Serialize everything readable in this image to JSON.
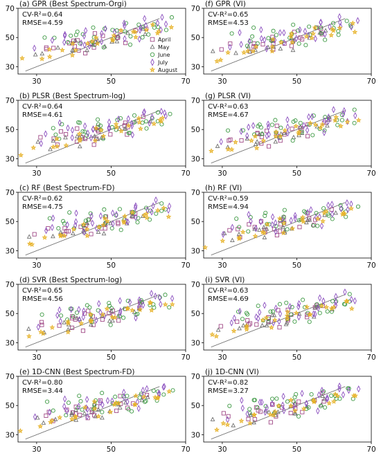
{
  "chart_data": [
    {
      "type": "scatter",
      "panel_title": "(a) GPR (Best Spectrum-Orgi)",
      "stats": [
        "CV-R²=0.64",
        "RMSE=4.59"
      ],
      "xlim": [
        25,
        70
      ],
      "ylim": [
        25,
        70
      ],
      "xticks": [
        30,
        50,
        70
      ],
      "yticks": [
        30,
        50,
        70
      ],
      "show_legend": true
    },
    {
      "type": "scatter",
      "panel_title": "(f) GPR (VI)",
      "stats": [
        "CV-R²=0.65",
        "RMSE=4.53"
      ],
      "xlim": [
        25,
        70
      ],
      "ylim": [
        25,
        70
      ],
      "xticks": [
        30,
        50,
        70
      ],
      "yticks": [
        30,
        50,
        70
      ],
      "show_legend": false
    },
    {
      "type": "scatter",
      "panel_title": "(b) PLSR (Best Spectrum-log)",
      "stats": [
        "CV-R²=0.64",
        "RMSE=4.61"
      ],
      "xlim": [
        25,
        70
      ],
      "ylim": [
        25,
        70
      ],
      "xticks": [
        30,
        50,
        70
      ],
      "yticks": [
        30,
        50,
        70
      ],
      "show_legend": false
    },
    {
      "type": "scatter",
      "panel_title": "(g) PLSR (VI)",
      "stats": [
        "CV-R²=0.63",
        "RMSE=4.67"
      ],
      "xlim": [
        25,
        70
      ],
      "ylim": [
        25,
        70
      ],
      "xticks": [
        30,
        50,
        70
      ],
      "yticks": [
        30,
        50,
        70
      ],
      "show_legend": false
    },
    {
      "type": "scatter",
      "panel_title": "(c) RF (Best Spectrum-FD)",
      "stats": [
        "CV-R²=0.62",
        "RMSE=4.75"
      ],
      "xlim": [
        25,
        70
      ],
      "ylim": [
        25,
        70
      ],
      "xticks": [
        30,
        50,
        70
      ],
      "yticks": [
        30,
        50,
        70
      ],
      "show_legend": false
    },
    {
      "type": "scatter",
      "panel_title": "(h) RF (VI)",
      "stats": [
        "CV-R²=0.59",
        "RMSE=4.94"
      ],
      "xlim": [
        25,
        70
      ],
      "ylim": [
        25,
        70
      ],
      "xticks": [
        30,
        50,
        70
      ],
      "yticks": [
        30,
        50,
        70
      ],
      "show_legend": false
    },
    {
      "type": "scatter",
      "panel_title": "(d) SVR (Best Spectrum-log)",
      "stats": [
        "CV-R²=0.65",
        "RMSE=4.56"
      ],
      "xlim": [
        25,
        70
      ],
      "ylim": [
        25,
        70
      ],
      "xticks": [
        30,
        50,
        70
      ],
      "yticks": [
        30,
        50,
        70
      ],
      "show_legend": false
    },
    {
      "type": "scatter",
      "panel_title": "(i) SVR (VI)",
      "stats": [
        "CV-R²=0.63",
        "RMSE=4.69"
      ],
      "xlim": [
        25,
        70
      ],
      "ylim": [
        25,
        70
      ],
      "xticks": [
        30,
        50,
        70
      ],
      "yticks": [
        30,
        50,
        70
      ],
      "show_legend": false
    },
    {
      "type": "scatter",
      "panel_title": "(e) 1D-CNN (Best Spectrum-FD)",
      "stats": [
        "CV-R²=0.80",
        "RMSE=3.44"
      ],
      "xlim": [
        25,
        70
      ],
      "ylim": [
        25,
        70
      ],
      "xticks": [
        30,
        50,
        70
      ],
      "yticks": [
        30,
        50,
        70
      ],
      "show_legend": false
    },
    {
      "type": "scatter",
      "panel_title": "(j) 1D-CNN (VI)",
      "stats": [
        "CV-R²=0.82",
        "RMSE=3.27"
      ],
      "xlim": [
        25,
        70
      ],
      "ylim": [
        25,
        70
      ],
      "xticks": [
        30,
        50,
        70
      ],
      "yticks": [
        30,
        50,
        70
      ],
      "show_legend": false
    }
  ],
  "legend": [
    {
      "label": "April",
      "marker": "square",
      "color": "#a04a87"
    },
    {
      "label": "May",
      "marker": "triangle",
      "color": "#707070"
    },
    {
      "label": "June",
      "marker": "circle",
      "color": "#3f9a45"
    },
    {
      "label": "July",
      "marker": "diamond",
      "color": "#8b4fbf"
    },
    {
      "label": "August",
      "marker": "star",
      "color": "#e7b228"
    }
  ],
  "one_to_one_line": {
    "from": [
      27,
      27
    ],
    "to": [
      63,
      63
    ],
    "color": "#666666"
  },
  "months": [
    {
      "label": "April",
      "color": "#a04a87",
      "marker": "square",
      "points": [
        [
          31,
          43
        ],
        [
          33,
          44
        ],
        [
          36,
          41
        ],
        [
          38,
          47
        ],
        [
          40,
          42
        ],
        [
          41,
          46
        ],
        [
          42,
          49
        ],
        [
          44,
          44
        ],
        [
          45,
          51
        ],
        [
          46,
          47
        ],
        [
          48,
          52
        ],
        [
          50,
          48
        ],
        [
          52,
          51
        ],
        [
          54,
          55
        ],
        [
          56,
          53
        ],
        [
          58,
          57
        ],
        [
          44,
          40
        ],
        [
          47,
          45
        ],
        [
          39,
          45
        ],
        [
          53,
          47
        ]
      ]
    },
    {
      "label": "May",
      "color": "#707070",
      "marker": "triangle",
      "points": [
        [
          29,
          40
        ],
        [
          33,
          38
        ],
        [
          36,
          42
        ],
        [
          38,
          43
        ],
        [
          40,
          40
        ],
        [
          41,
          45
        ],
        [
          43,
          43
        ],
        [
          45,
          47
        ],
        [
          46,
          44
        ],
        [
          47,
          49
        ],
        [
          49,
          46
        ],
        [
          51,
          50
        ],
        [
          53,
          49
        ],
        [
          55,
          52
        ],
        [
          57,
          55
        ],
        [
          59,
          54
        ],
        [
          42,
          47
        ],
        [
          48,
          43
        ]
      ]
    },
    {
      "label": "June",
      "color": "#3f9a45",
      "marker": "circle",
      "points": [
        [
          33,
          51
        ],
        [
          36,
          48
        ],
        [
          38,
          52
        ],
        [
          40,
          55
        ],
        [
          42,
          50
        ],
        [
          43,
          53
        ],
        [
          44,
          46
        ],
        [
          45,
          55
        ],
        [
          47,
          51
        ],
        [
          48,
          57
        ],
        [
          50,
          53
        ],
        [
          51,
          56
        ],
        [
          52,
          50
        ],
        [
          53,
          58
        ],
        [
          54,
          46
        ],
        [
          55,
          55
        ],
        [
          56,
          49
        ],
        [
          57,
          58
        ],
        [
          58,
          51
        ],
        [
          59,
          57
        ],
        [
          60,
          53
        ],
        [
          61,
          58
        ],
        [
          62,
          55
        ],
        [
          63,
          60
        ],
        [
          64,
          56
        ],
        [
          65,
          62
        ],
        [
          46,
          48
        ],
        [
          49,
          44
        ],
        [
          37,
          45
        ],
        [
          41,
          47
        ]
      ]
    },
    {
      "label": "July",
      "color": "#8b4fbf",
      "marker": "diamond",
      "points": [
        [
          31,
          42
        ],
        [
          34,
          47
        ],
        [
          36,
          53
        ],
        [
          38,
          46
        ],
        [
          39,
          51
        ],
        [
          41,
          48
        ],
        [
          42,
          54
        ],
        [
          44,
          50
        ],
        [
          45,
          46
        ],
        [
          46,
          52
        ],
        [
          48,
          55
        ],
        [
          49,
          49
        ],
        [
          51,
          53
        ],
        [
          52,
          57
        ],
        [
          54,
          51
        ],
        [
          55,
          59
        ],
        [
          57,
          54
        ],
        [
          58,
          60
        ],
        [
          59,
          56
        ],
        [
          60,
          62
        ],
        [
          62,
          57
        ],
        [
          63,
          63
        ],
        [
          64,
          59
        ],
        [
          65,
          61
        ],
        [
          56,
          48
        ],
        [
          43,
          44
        ]
      ]
    },
    {
      "label": "August",
      "color": "#e7b228",
      "marker": "star",
      "points": [
        [
          27,
          34
        ],
        [
          30,
          36
        ],
        [
          33,
          38
        ],
        [
          35,
          40
        ],
        [
          37,
          42
        ],
        [
          38,
          39
        ],
        [
          40,
          44
        ],
        [
          42,
          42
        ],
        [
          43,
          47
        ],
        [
          45,
          44
        ],
        [
          46,
          48
        ],
        [
          47,
          51
        ],
        [
          49,
          47
        ],
        [
          50,
          52
        ],
        [
          52,
          49
        ],
        [
          53,
          53
        ],
        [
          55,
          51
        ],
        [
          56,
          55
        ],
        [
          58,
          52
        ],
        [
          59,
          56
        ],
        [
          61,
          54
        ],
        [
          62,
          57
        ],
        [
          64,
          55
        ],
        [
          65,
          58
        ]
      ]
    }
  ],
  "colors": {
    "axis": "#000000",
    "line": "#666666"
  }
}
